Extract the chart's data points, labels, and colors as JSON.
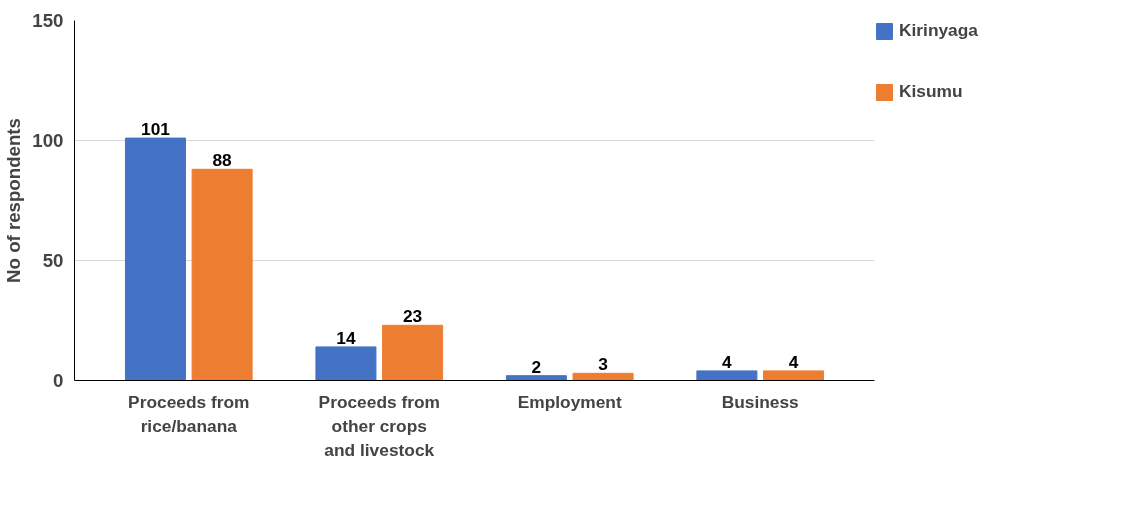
{
  "chart_data": {
    "type": "bar",
    "ylabel": "No of respondents",
    "categories": [
      "Proceeds from rice/banana",
      "Proceeds from other crops and livestock",
      "Employment",
      "Business"
    ],
    "series": [
      {
        "name": "Kirinyaga",
        "color": "#4472c4",
        "values": [
          101,
          14,
          2,
          4
        ]
      },
      {
        "name": "Kisumu",
        "color": "#ed7d31",
        "values": [
          88,
          23,
          3,
          4
        ]
      }
    ],
    "ylim": [
      0,
      150
    ],
    "yticks": [
      0,
      50,
      100,
      150
    ],
    "grid": "y",
    "legend": "right",
    "data_labels": true
  }
}
